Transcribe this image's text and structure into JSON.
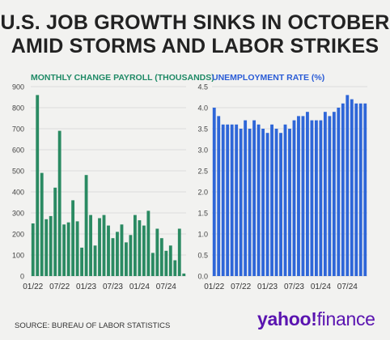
{
  "header": {
    "title_line1": "U.S. JOB GROWTH SINKS IN OCTOBER",
    "title_line2": "AMID STORMS AND LABOR STRIKES"
  },
  "footer": {
    "source": "SOURCE: BUREAU OF LABOR STATISTICS",
    "logo_brand": "yahoo!",
    "logo_product": "finance"
  },
  "colors": {
    "payroll_bar": "#2a8a62",
    "unemployment_bar": "#2e66d8",
    "payroll_title": "#1f8a66",
    "unemployment_title": "#2a5cd6",
    "logo": "#5a14b0"
  },
  "chart_data": [
    {
      "type": "bar",
      "title": "MONTHLY CHANGE PAYROLL (THOUSANDS)",
      "x_tick_labels": [
        "01/22",
        "07/22",
        "01/23",
        "07/23",
        "01/24",
        "07/24"
      ],
      "ylim": [
        0,
        900
      ],
      "y_ticks": [
        0,
        100,
        200,
        300,
        400,
        500,
        600,
        700,
        800,
        900
      ],
      "grid": true,
      "values": [
        250,
        860,
        490,
        270,
        285,
        420,
        690,
        245,
        255,
        360,
        260,
        135,
        480,
        290,
        145,
        275,
        290,
        240,
        180,
        210,
        245,
        160,
        195,
        290,
        265,
        240,
        310,
        110,
        225,
        180,
        120,
        145,
        75,
        225,
        12
      ]
    },
    {
      "type": "bar",
      "title": "UNEMPLOYMENT RATE (%)",
      "x_tick_labels": [
        "01/22",
        "07/22",
        "01/23",
        "07/23",
        "01/24",
        "07/24"
      ],
      "ylim": [
        0,
        4.5
      ],
      "y_ticks": [
        0,
        0.5,
        1,
        1.5,
        2,
        2.5,
        3,
        3.5,
        4,
        4.5
      ],
      "grid": true,
      "values": [
        4.0,
        3.8,
        3.6,
        3.6,
        3.6,
        3.6,
        3.5,
        3.7,
        3.5,
        3.7,
        3.6,
        3.5,
        3.4,
        3.6,
        3.5,
        3.4,
        3.6,
        3.5,
        3.7,
        3.8,
        3.8,
        3.9,
        3.7,
        3.7,
        3.7,
        3.9,
        3.8,
        3.9,
        4.0,
        4.1,
        4.3,
        4.2,
        4.1,
        4.1,
        4.1
      ]
    }
  ]
}
